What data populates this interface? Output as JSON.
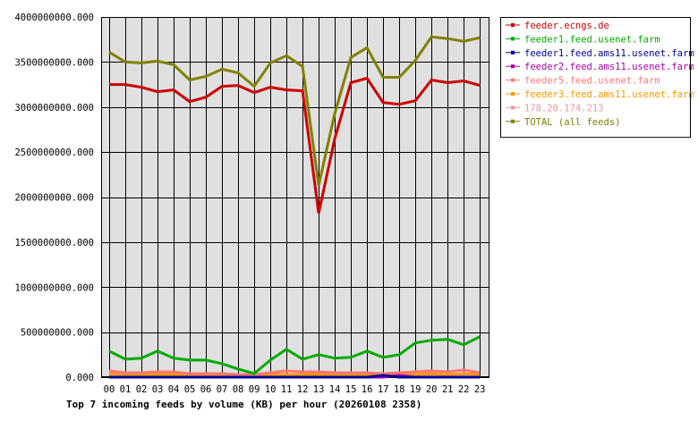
{
  "chart_data": {
    "type": "line",
    "title": "Top 7 incoming feeds by volume (KB) per hour (20260108 2358)",
    "xlabel": "",
    "ylabel": "",
    "ylim": [
      0,
      4000000000
    ],
    "y_ticks": [
      0,
      500000000,
      1000000000,
      1500000000,
      2000000000,
      2500000000,
      3000000000,
      3500000000,
      4000000000
    ],
    "y_tick_labels": [
      "0.000",
      "500000000.000",
      "1000000000.000",
      "1500000000.000",
      "2000000000.000",
      "2500000000.000",
      "3000000000.000",
      "3500000000.000",
      "4000000000.000"
    ],
    "categories": [
      "00",
      "01",
      "02",
      "03",
      "04",
      "05",
      "06",
      "07",
      "08",
      "09",
      "10",
      "11",
      "12",
      "13",
      "14",
      "15",
      "16",
      "17",
      "18",
      "19",
      "20",
      "21",
      "22",
      "23"
    ],
    "grid": true,
    "legend_position": "right",
    "series": [
      {
        "name": "feeder.ecngs.de",
        "color": "#cc0000",
        "values": [
          3250000000,
          3250000000,
          3220000000,
          3170000000,
          3190000000,
          3060000000,
          3110000000,
          3230000000,
          3240000000,
          3160000000,
          3220000000,
          3190000000,
          3180000000,
          1820000000,
          2650000000,
          3270000000,
          3320000000,
          3050000000,
          3030000000,
          3070000000,
          3300000000,
          3270000000,
          3290000000,
          3240000000
        ]
      },
      {
        "name": "feeder1.feed.usenet.farm",
        "color": "#00aa00",
        "values": [
          290000000,
          200000000,
          210000000,
          290000000,
          210000000,
          190000000,
          190000000,
          150000000,
          90000000,
          40000000,
          190000000,
          310000000,
          200000000,
          250000000,
          210000000,
          220000000,
          290000000,
          220000000,
          250000000,
          380000000,
          410000000,
          420000000,
          360000000,
          450000000
        ]
      },
      {
        "name": "feeder1.feed.ams11.usenet.farm",
        "color": "#000099",
        "values": [
          0,
          0,
          0,
          0,
          0,
          0,
          0,
          0,
          0,
          0,
          0,
          0,
          0,
          0,
          0,
          0,
          0,
          20000000,
          0,
          0,
          0,
          0,
          0,
          0
        ]
      },
      {
        "name": "feeder2.feed.ams11.usenet.farm",
        "color": "#aa00aa",
        "values": [
          0,
          0,
          0,
          0,
          0,
          0,
          0,
          0,
          0,
          0,
          0,
          0,
          0,
          0,
          0,
          0,
          0,
          0,
          20000000,
          0,
          0,
          0,
          0,
          0
        ]
      },
      {
        "name": "feeder5.feed.usenet.farm",
        "color": "#ff7777",
        "values": [
          70000000,
          50000000,
          50000000,
          60000000,
          60000000,
          40000000,
          40000000,
          40000000,
          30000000,
          30000000,
          50000000,
          70000000,
          60000000,
          60000000,
          50000000,
          50000000,
          50000000,
          40000000,
          50000000,
          60000000,
          70000000,
          60000000,
          80000000,
          50000000
        ]
      },
      {
        "name": "feeder3.feed.ams11.usenet.farm",
        "color": "#ff9900",
        "values": [
          40000000,
          30000000,
          30000000,
          30000000,
          30000000,
          30000000,
          30000000,
          30000000,
          20000000,
          20000000,
          30000000,
          30000000,
          30000000,
          30000000,
          30000000,
          30000000,
          30000000,
          30000000,
          30000000,
          30000000,
          40000000,
          30000000,
          40000000,
          30000000
        ]
      },
      {
        "name": "178.20.174.213",
        "color": "#ee9999",
        "values": [
          20000000,
          10000000,
          10000000,
          10000000,
          10000000,
          10000000,
          10000000,
          10000000,
          10000000,
          10000000,
          10000000,
          10000000,
          10000000,
          10000000,
          10000000,
          10000000,
          10000000,
          10000000,
          10000000,
          10000000,
          10000000,
          10000000,
          10000000,
          10000000
        ]
      },
      {
        "name": "TOTAL (all feeds)",
        "color": "#808000",
        "values": [
          3610000000,
          3500000000,
          3490000000,
          3510000000,
          3470000000,
          3300000000,
          3340000000,
          3420000000,
          3380000000,
          3230000000,
          3490000000,
          3570000000,
          3450000000,
          2130000000,
          2930000000,
          3550000000,
          3660000000,
          3330000000,
          3330000000,
          3520000000,
          3780000000,
          3760000000,
          3730000000,
          3770000000
        ]
      }
    ]
  }
}
